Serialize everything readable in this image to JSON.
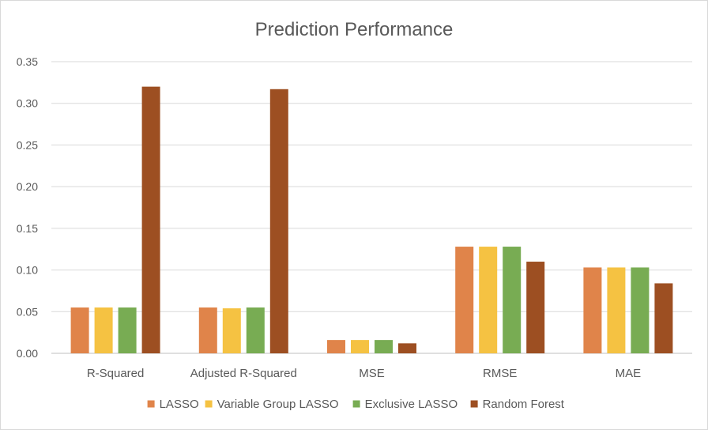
{
  "chart_data": {
    "type": "bar",
    "title": "Prediction Performance",
    "xlabel": "",
    "ylabel": "",
    "categories": [
      "R-Squared",
      "Adjusted R-Squared",
      "MSE",
      "RMSE",
      "MAE"
    ],
    "series": [
      {
        "name": "LASSO",
        "color": "#E0844A",
        "values": [
          0.055,
          0.055,
          0.016,
          0.128,
          0.103
        ]
      },
      {
        "name": "Variable Group LASSO",
        "color": "#F5C242",
        "values": [
          0.055,
          0.054,
          0.016,
          0.128,
          0.103
        ]
      },
      {
        "name": "Exclusive LASSO",
        "color": "#78AC53",
        "values": [
          0.055,
          0.055,
          0.016,
          0.128,
          0.103
        ]
      },
      {
        "name": "Random Forest",
        "color": "#9D4F22",
        "values": [
          0.32,
          0.317,
          0.012,
          0.11,
          0.084
        ]
      }
    ],
    "ylim": [
      0,
      0.35
    ],
    "yticks": [
      "0.00",
      "0.05",
      "0.10",
      "0.15",
      "0.20",
      "0.25",
      "0.30",
      "0.35"
    ],
    "grid": true,
    "legend_position": "bottom"
  }
}
